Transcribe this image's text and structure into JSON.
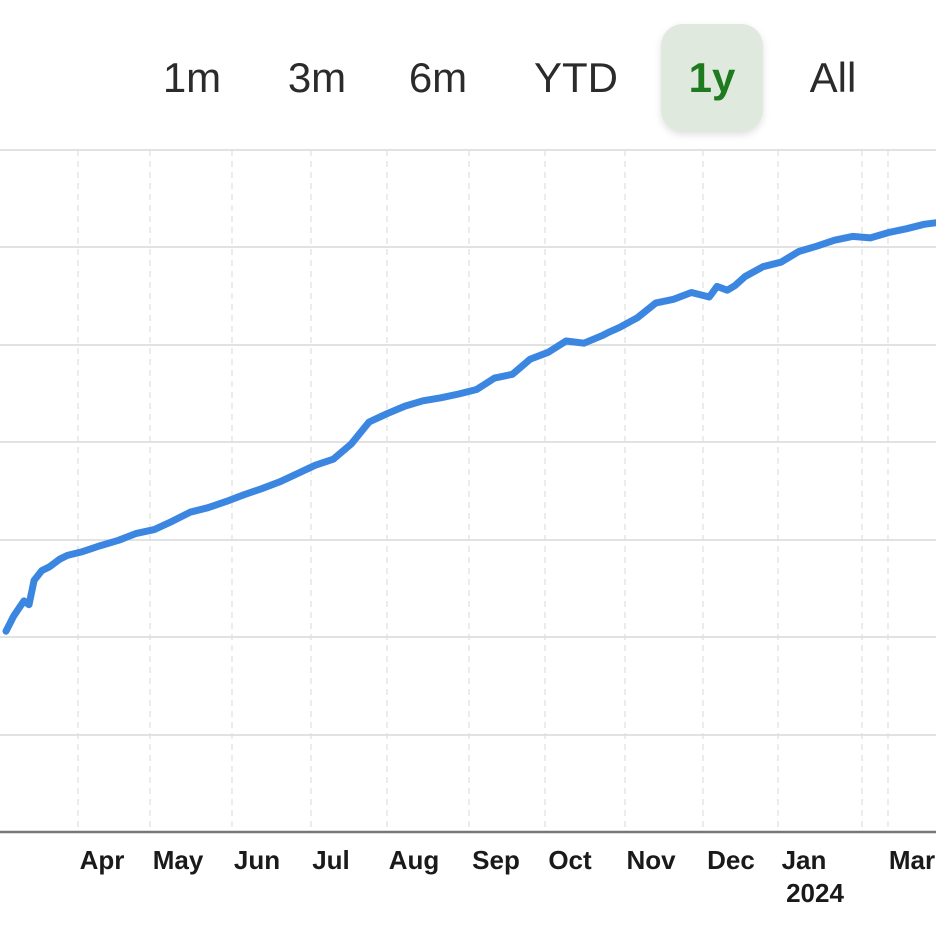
{
  "range_selector": {
    "options": [
      "1m",
      "3m",
      "6m",
      "YTD",
      "1y",
      "All"
    ],
    "selected": "1y"
  },
  "colors": {
    "line": "#3b86e0",
    "active_bg": "#dfe9de",
    "active_text": "#1f7a1f",
    "grid": "#d9d9d9",
    "axis": "#777777"
  },
  "chart_data": {
    "type": "line",
    "title": "",
    "xlabel": "",
    "ylabel": "",
    "x_tick_labels": [
      "Apr",
      "May",
      "Jun",
      "Jul",
      "Aug",
      "Sep",
      "Oct",
      "Nov",
      "Dec",
      "Jan",
      "Mar"
    ],
    "x_tick_year_label": "2024",
    "grid": true,
    "series": [
      {
        "x": [
          "2023-03-06",
          "2023-03-09",
          "2023-03-13",
          "2023-03-15",
          "2023-03-17",
          "2023-03-20",
          "2023-03-23",
          "2023-03-27",
          "2023-03-30",
          "2023-04-05",
          "2023-04-12",
          "2023-04-19",
          "2023-04-26",
          "2023-05-03",
          "2023-05-10",
          "2023-05-17",
          "2023-05-24",
          "2023-05-31",
          "2023-06-07",
          "2023-06-14",
          "2023-06-21",
          "2023-06-28",
          "2023-07-05",
          "2023-07-12",
          "2023-07-19",
          "2023-07-26",
          "2023-08-02",
          "2023-08-09",
          "2023-08-16",
          "2023-08-23",
          "2023-08-30",
          "2023-09-06",
          "2023-09-13",
          "2023-09-20",
          "2023-09-27",
          "2023-10-04",
          "2023-10-11",
          "2023-10-18",
          "2023-10-25",
          "2023-10-28",
          "2023-11-01",
          "2023-11-08",
          "2023-11-15",
          "2023-11-22",
          "2023-11-29",
          "2023-12-06",
          "2023-12-09",
          "2023-12-13",
          "2023-12-16",
          "2023-12-20",
          "2023-12-27",
          "2024-01-03",
          "2024-01-10",
          "2024-01-17",
          "2024-01-24",
          "2024-01-31",
          "2024-02-07",
          "2024-02-14",
          "2024-02-21",
          "2024-02-28",
          "2024-03-06"
        ],
        "values": [
          46.5,
          48.5,
          50.5,
          50,
          53.2,
          54.5,
          55,
          56,
          56.5,
          57,
          57.8,
          58.5,
          59.4,
          59.9,
          61,
          62.2,
          62.8,
          63.6,
          64.5,
          65.3,
          66.2,
          67.3,
          68.4,
          69.2,
          71.2,
          74.1,
          75.2,
          76.2,
          76.9,
          77.3,
          77.8,
          78.4,
          79.9,
          80.4,
          82.4,
          83.3,
          84.8,
          84.5,
          85.5,
          86,
          86.6,
          87.9,
          89.8,
          90.3,
          91.2,
          90.6,
          92,
          91.5,
          92.1,
          93.3,
          94.6,
          95.2,
          96.6,
          97.3,
          98.1,
          98.6,
          98.4,
          99.1,
          99.6,
          100.2,
          100.5
        ]
      }
    ]
  }
}
